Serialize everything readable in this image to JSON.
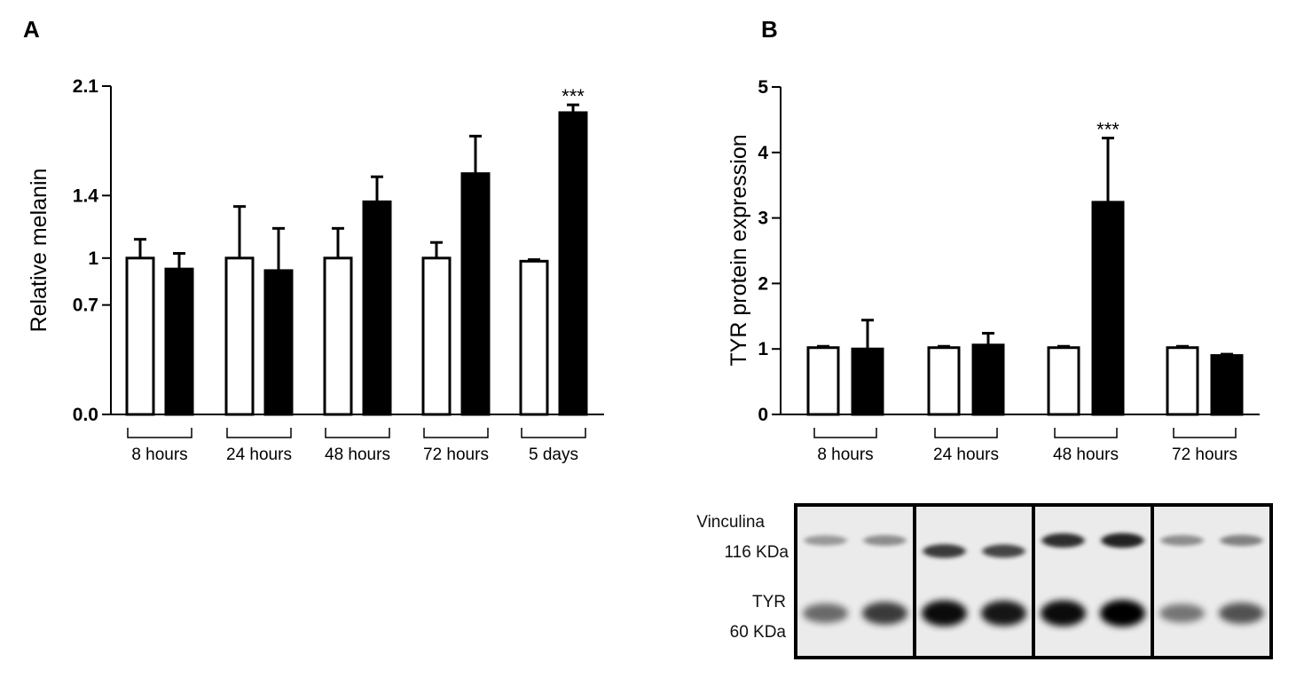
{
  "panels": {
    "a": "A",
    "b": "B"
  },
  "chart_data": [
    {
      "type": "bar",
      "ylabel": "Relative melanin",
      "yticks": [
        "0.0",
        "0.7",
        "1",
        "1.4",
        "2.1"
      ],
      "ylim": [
        0,
        2.1
      ],
      "categories": [
        "8 hours",
        "24 hours",
        "48 hours",
        "72 hours",
        "5 days"
      ],
      "series": [
        {
          "fill": "#ffffff",
          "values": [
            1.0,
            1.0,
            1.0,
            1.0,
            0.98
          ],
          "errors": [
            0.12,
            0.33,
            0.19,
            0.1,
            0.01
          ]
        },
        {
          "fill": "#000000",
          "values": [
            0.93,
            0.92,
            1.36,
            1.54,
            1.93
          ],
          "errors": [
            0.1,
            0.27,
            0.16,
            0.24,
            0.05
          ]
        }
      ],
      "annotations": [
        {
          "category": "5 days",
          "series": 1,
          "text": "***"
        }
      ]
    },
    {
      "type": "bar",
      "ylabel": "TYR protein expression",
      "yticks": [
        "0",
        "1",
        "2",
        "3",
        "4",
        "5"
      ],
      "ylim": [
        0,
        5
      ],
      "categories": [
        "8 hours",
        "24 hours",
        "48 hours",
        "72 hours"
      ],
      "series": [
        {
          "fill": "#ffffff",
          "values": [
            1.02,
            1.02,
            1.02,
            1.02
          ],
          "errors": [
            0.02,
            0.02,
            0.02,
            0.02
          ]
        },
        {
          "fill": "#000000",
          "values": [
            1.0,
            1.06,
            3.24,
            0.9
          ],
          "errors": [
            0.44,
            0.18,
            0.98,
            0.02
          ]
        }
      ],
      "annotations": [
        {
          "category": "48 hours",
          "series": 1,
          "text": "***"
        }
      ]
    }
  ],
  "blot": {
    "labels": [
      {
        "name": "Vinculina",
        "weight": "116 KDa"
      },
      {
        "name": "TYR",
        "weight": "60 KDa"
      }
    ],
    "lanes": [
      {
        "vinculin": 0.35,
        "tyr": 0.55
      },
      {
        "vinculin": 0.4,
        "tyr": 0.75
      },
      {
        "vinculin": 0.75,
        "tyr": 0.95
      },
      {
        "vinculin": 0.7,
        "tyr": 0.9
      },
      {
        "vinculin": 0.8,
        "tyr": 0.95
      },
      {
        "vinculin": 0.85,
        "tyr": 1.0
      },
      {
        "vinculin": 0.4,
        "tyr": 0.5
      },
      {
        "vinculin": 0.45,
        "tyr": 0.65
      }
    ]
  }
}
